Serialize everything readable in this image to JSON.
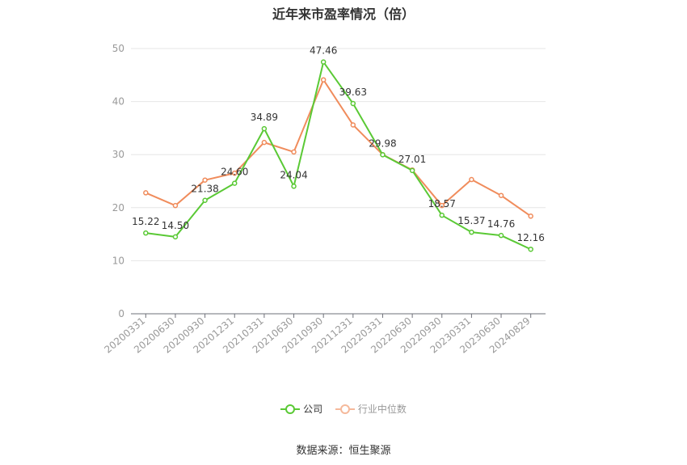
{
  "chart_data": {
    "type": "line",
    "title": "近年来市盈率情况（倍）",
    "categories": [
      "20200331",
      "20200630",
      "20200930",
      "20201231",
      "20210331",
      "20210630",
      "20210930",
      "20211231",
      "20220331",
      "20220630",
      "20220930",
      "20230331",
      "20230630",
      "20240829"
    ],
    "series": [
      {
        "name": "公司",
        "color": "#5ac935",
        "values": [
          15.22,
          14.5,
          21.38,
          24.6,
          34.89,
          24.04,
          47.46,
          39.63,
          29.98,
          27.01,
          18.57,
          15.37,
          14.76,
          12.16
        ],
        "labels": [
          "15.22",
          "14.50",
          "21.38",
          "24.60",
          "34.89",
          "24.04",
          "47.46",
          "39.63",
          "29.98",
          "27.01",
          "18.57",
          "15.37",
          "14.76",
          "12.16"
        ]
      },
      {
        "name": "行业中位数",
        "color": "#f08c5c",
        "values": [
          22.8,
          20.4,
          25.2,
          26.5,
          32.3,
          30.5,
          44.1,
          35.6,
          30.0,
          27.1,
          20.4,
          25.3,
          22.3,
          18.4
        ]
      }
    ],
    "yticks": [
      "0",
      "10",
      "20",
      "30",
      "40",
      "50"
    ],
    "ylim": [
      0,
      50
    ],
    "grid": true,
    "legend_position": "bottom-center",
    "source": "数据来源：恒生聚源"
  }
}
